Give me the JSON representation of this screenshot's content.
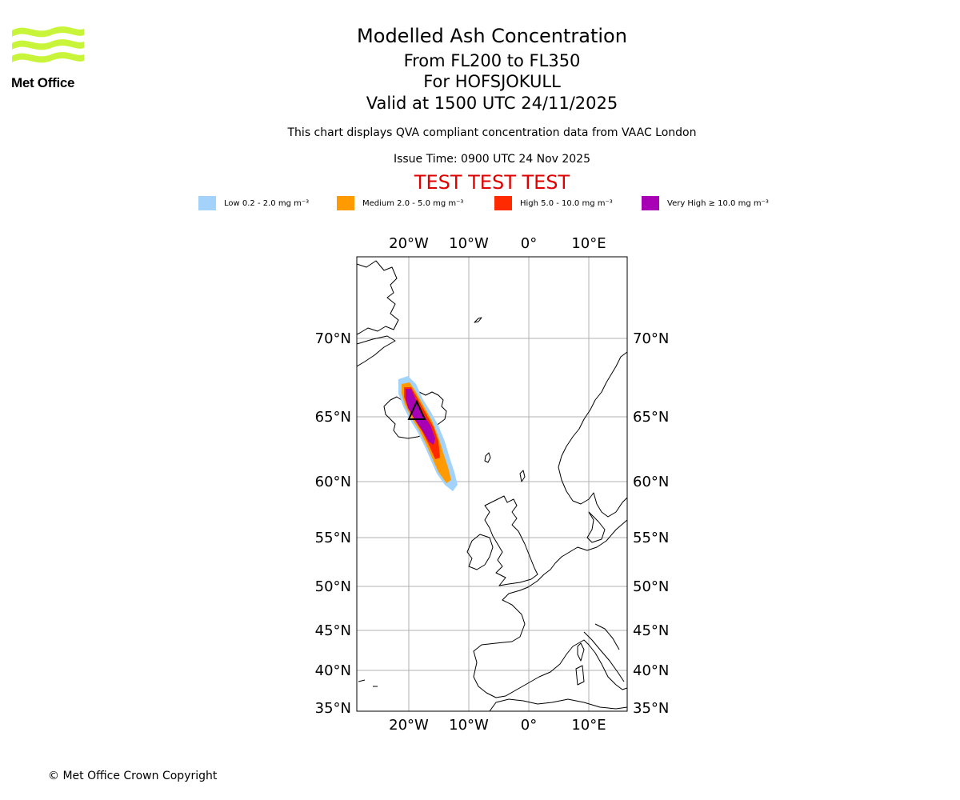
{
  "logo": {
    "text": "Met Office",
    "color": "#c8f53a"
  },
  "header": {
    "title": "Modelled Ash Concentration",
    "levels": "From FL200 to FL350",
    "volcano": "For HOFSJOKULL",
    "valid": "Valid at 1500 UTC 24/11/2025",
    "description": "This chart displays QVA compliant concentration data from VAAC London",
    "issue_time": "Issue Time: 0900 UTC 24 Nov 2025",
    "test_banner": "TEST TEST TEST"
  },
  "legend": [
    {
      "label": "Low 0.2 - 2.0 mg m⁻³",
      "color": "#a3d3fb"
    },
    {
      "label": "Medium 2.0 - 5.0 mg m⁻³",
      "color": "#ff9a00"
    },
    {
      "label": "High 5.0 - 10.0 mg m⁻³",
      "color": "#ff2a00"
    },
    {
      "label": "Very High ≥ 10.0 mg m⁻³",
      "color": "#a800b4"
    }
  ],
  "map": {
    "lon_labels": [
      "20°W",
      "10°W",
      "0°",
      "10°E"
    ],
    "lat_labels": [
      "70°N",
      "65°N",
      "60°N",
      "55°N",
      "50°N",
      "45°N",
      "40°N",
      "35°N"
    ]
  },
  "footer": {
    "copyright": "© Met Office Crown Copyright"
  }
}
